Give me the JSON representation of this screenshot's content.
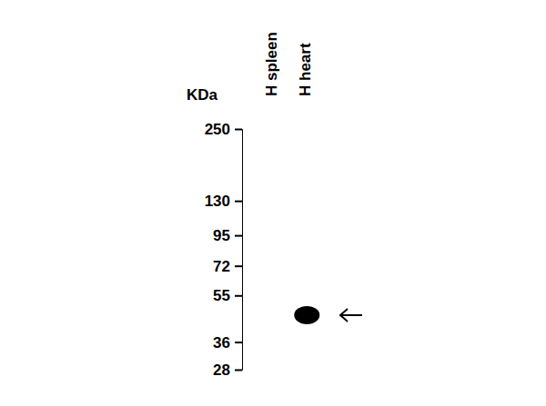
{
  "chart_data": {
    "type": "blot",
    "y_label": "KDa",
    "categories": [
      "H spleen",
      "H heart"
    ],
    "values": [
      null,
      46
    ],
    "color": "#000000",
    "ylim": [
      28,
      250
    ],
    "yticks": [
      250,
      130,
      95,
      72,
      55,
      36,
      28
    ],
    "log": "y"
  }
}
